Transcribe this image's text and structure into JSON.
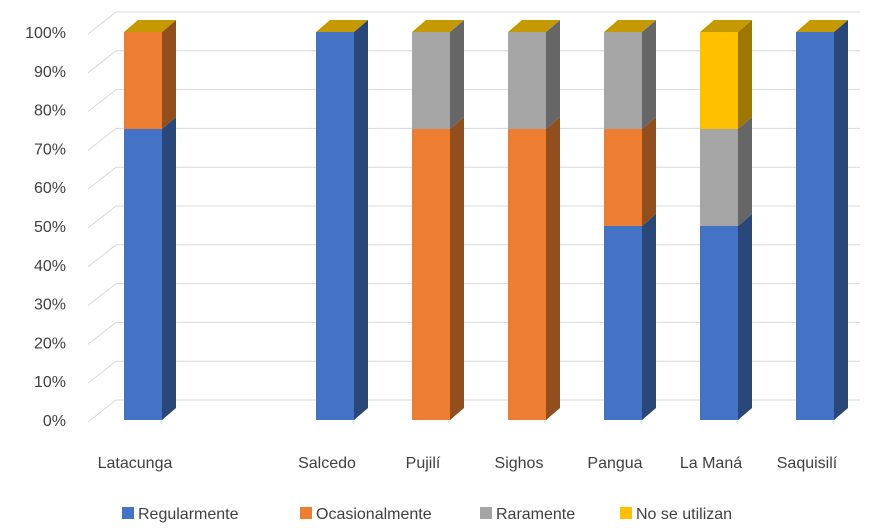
{
  "chart_data": {
    "type": "bar",
    "stacked": true,
    "percent": true,
    "three_d": true,
    "categories": [
      "Latacunga",
      "",
      "Salcedo",
      "Pujilí",
      "Sighos",
      "Pangua",
      "La Maná",
      "Saquisilí"
    ],
    "series": [
      {
        "name": "Regularmente",
        "color": "#4472C4",
        "values": [
          75,
          null,
          100,
          0,
          0,
          50,
          50,
          100
        ]
      },
      {
        "name": "Ocasionalmente",
        "color": "#ED7D31",
        "values": [
          25,
          null,
          0,
          75,
          75,
          25,
          0,
          0
        ]
      },
      {
        "name": "Raramente",
        "color": "#A5A5A5",
        "values": [
          0,
          null,
          0,
          25,
          25,
          25,
          25,
          0
        ]
      },
      {
        "name": "No se utilizan",
        "color": "#FFC000",
        "values": [
          0,
          null,
          0,
          0,
          0,
          0,
          25,
          0
        ]
      }
    ],
    "y_ticks": [
      "0%",
      "10%",
      "20%",
      "30%",
      "40%",
      "50%",
      "60%",
      "70%",
      "80%",
      "90%",
      "100%"
    ],
    "ylim": [
      0,
      100
    ],
    "grid": true,
    "legend_position": "bottom",
    "title": "",
    "xlabel": "",
    "ylabel": ""
  }
}
